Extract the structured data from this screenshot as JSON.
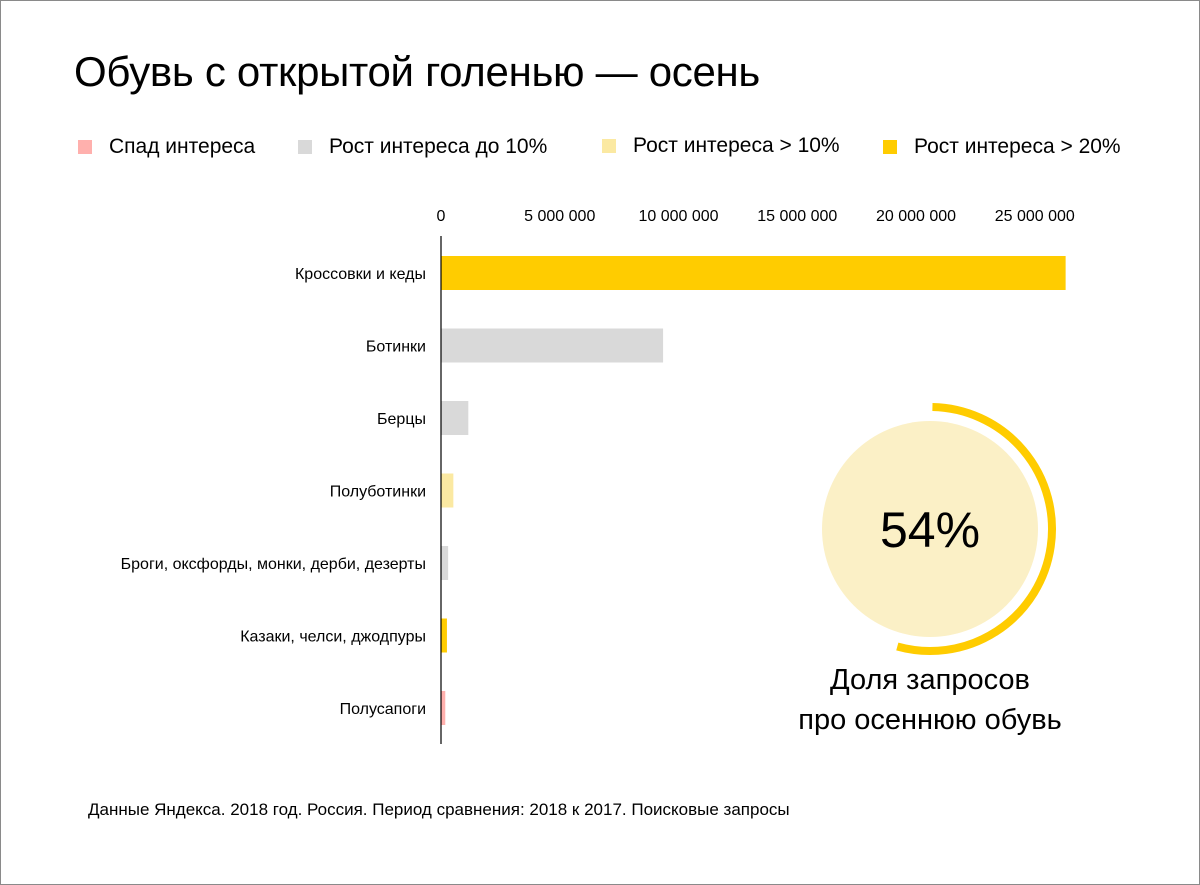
{
  "title": "Обувь с открытой голенью — осень",
  "legend": [
    {
      "label": "Спад интереса",
      "color": "#ffb0ad"
    },
    {
      "label": "Рост интереса до 10%",
      "color": "#d9d9d9"
    },
    {
      "label": "Рост интереса > 10%",
      "color": "#fbe9a2"
    },
    {
      "label": "Рост интереса > 20%",
      "color": "#ffcc00"
    }
  ],
  "chart_data": [
    {
      "type": "bar",
      "orientation": "horizontal",
      "title": "",
      "xlabel": "",
      "ylabel": "",
      "xlim": [
        0,
        27000000
      ],
      "grid": false,
      "tick_values": [
        0,
        5000000,
        10000000,
        15000000,
        20000000,
        25000000
      ],
      "tick_labels": [
        "0",
        "5 000 000",
        "10 000 000",
        "15 000 000",
        "20 000 000",
        "25 000 000"
      ],
      "categories": [
        "Кроссовки и кеды",
        "Ботинки",
        "Берцы",
        "Полуботинки",
        "Броги, оксфорды, монки, дерби, дезерты",
        "Казаки, челси, джодпуры",
        "Полусапоги"
      ],
      "values": [
        26300000,
        9350000,
        1150000,
        520000,
        300000,
        250000,
        180000
      ],
      "groups": [
        "Рост интереса > 20%",
        "Рост интереса до 10%",
        "Рост интереса до 10%",
        "Рост интереса > 10%",
        "Рост интереса до 10%",
        "Рост интереса > 20%",
        "Спад интереса"
      ],
      "group_colors": {
        "Спад интереса": "#ffb0ad",
        "Рост интереса до 10%": "#d9d9d9",
        "Рост интереса > 10%": "#fbe9a2",
        "Рост интереса > 20%": "#ffcc00"
      }
    },
    {
      "type": "pie",
      "title": "",
      "value": 54,
      "value_label": "54%",
      "ring_color": "#ffcc00",
      "fill_color": "#fbf0c6",
      "caption": [
        "Доля запросов",
        "про осеннюю обувь"
      ]
    }
  ],
  "source": "Данные Яндекса. 2018 год. Россия. Период сравнения: 2018 к 2017. Поисковые запросы"
}
